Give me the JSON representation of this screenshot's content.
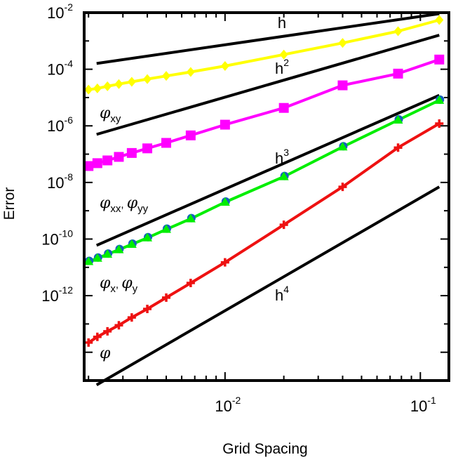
{
  "chart_data": {
    "type": "line",
    "xscale": "log",
    "yscale": "log",
    "xlabel": "Grid Spacing",
    "ylabel": "Error",
    "xlim": [
      0.0019,
      0.14
    ],
    "ylim": [
      1e-15,
      0.01
    ],
    "x_ticks": [
      {
        "value": 0.01,
        "base": "10",
        "exp": "-2"
      },
      {
        "value": 0.1,
        "base": "10",
        "exp": "-1"
      }
    ],
    "y_ticks": [
      {
        "value": 0.01,
        "base": "10",
        "exp": "-2"
      },
      {
        "value": 0.0001,
        "base": "10",
        "exp": "-4"
      },
      {
        "value": 1e-06,
        "base": "10",
        "exp": "-6"
      },
      {
        "value": 1e-08,
        "base": "10",
        "exp": "-8"
      },
      {
        "value": 1e-10,
        "base": "10",
        "exp": "-10"
      },
      {
        "value": 1e-12,
        "base": "10",
        "exp": "-12"
      }
    ],
    "x": [
      0.125,
      0.0769,
      0.04,
      0.02,
      0.01,
      0.00667,
      0.005,
      0.004,
      0.00333,
      0.00286,
      0.0025,
      0.00222,
      0.002
    ],
    "series": [
      {
        "name": "phi_xy",
        "label_base": "φ",
        "label_sub": "xy",
        "color": "#ffff00",
        "marker": "diamond",
        "values": [
          0.0055,
          0.0022,
          0.00085,
          0.00033,
          0.00013,
          8e-05,
          5.8e-05,
          4.5e-05,
          3.6e-05,
          3e-05,
          2.5e-05,
          2.1e-05,
          1.9e-05
        ]
      },
      {
        "name": "phi_xx_yy",
        "label_base": "φ",
        "label_sub": "xx",
        "label_sep": ", ",
        "label_base2": "φ",
        "label_sub2": "yy",
        "color": "#ff00ff",
        "marker": "square",
        "values": [
          0.00022,
          7e-05,
          2.7e-05,
          4.3e-06,
          1.1e-06,
          4.6e-07,
          2.5e-07,
          1.6e-07,
          1.1e-07,
          8e-08,
          6e-08,
          4.8e-08,
          3.8e-08
        ]
      },
      {
        "name": "phi_x_y",
        "label_base": "φ",
        "label_sub": "x",
        "label_sep": ", ",
        "label_base2": "φ",
        "label_sub2": "y",
        "color": "#00ee00",
        "marker": "circle-triangle",
        "values": [
          8e-06,
          1.6e-06,
          1.8e-07,
          1.6e-08,
          2e-09,
          5.2e-10,
          2.2e-10,
          1.1e-10,
          6.5e-11,
          4.2e-11,
          2.9e-11,
          2.1e-11,
          1.6e-11
        ]
      },
      {
        "name": "phi",
        "label_base": "φ",
        "color": "#ee1111",
        "marker": "plus",
        "values": [
          1.2e-06,
          1.7e-07,
          7e-09,
          3.2e-10,
          1.5e-11,
          2.8e-12,
          8.5e-13,
          3.4e-13,
          1.7e-13,
          9e-14,
          5.5e-14,
          3.5e-14,
          2.2e-14
        ]
      }
    ],
    "reference_lines": [
      {
        "name": "h",
        "base": "h",
        "exp": "",
        "slope": 1,
        "x": [
          0.0022,
          0.125
        ],
        "y": [
          0.00016,
          0.0092
        ]
      },
      {
        "name": "h2",
        "base": "h",
        "exp": "2",
        "slope": 2,
        "x": [
          0.0022,
          0.125
        ],
        "y": [
          5e-07,
          0.0016
        ]
      },
      {
        "name": "h3",
        "base": "h",
        "exp": "3",
        "slope": 3,
        "x": [
          0.0022,
          0.125
        ],
        "y": [
          6e-11,
          1.2e-05
        ]
      },
      {
        "name": "h4",
        "base": "h",
        "exp": "4",
        "slope": 4,
        "x": [
          0.0022,
          0.125
        ],
        "y": [
          7e-16,
          7e-09
        ]
      }
    ]
  }
}
